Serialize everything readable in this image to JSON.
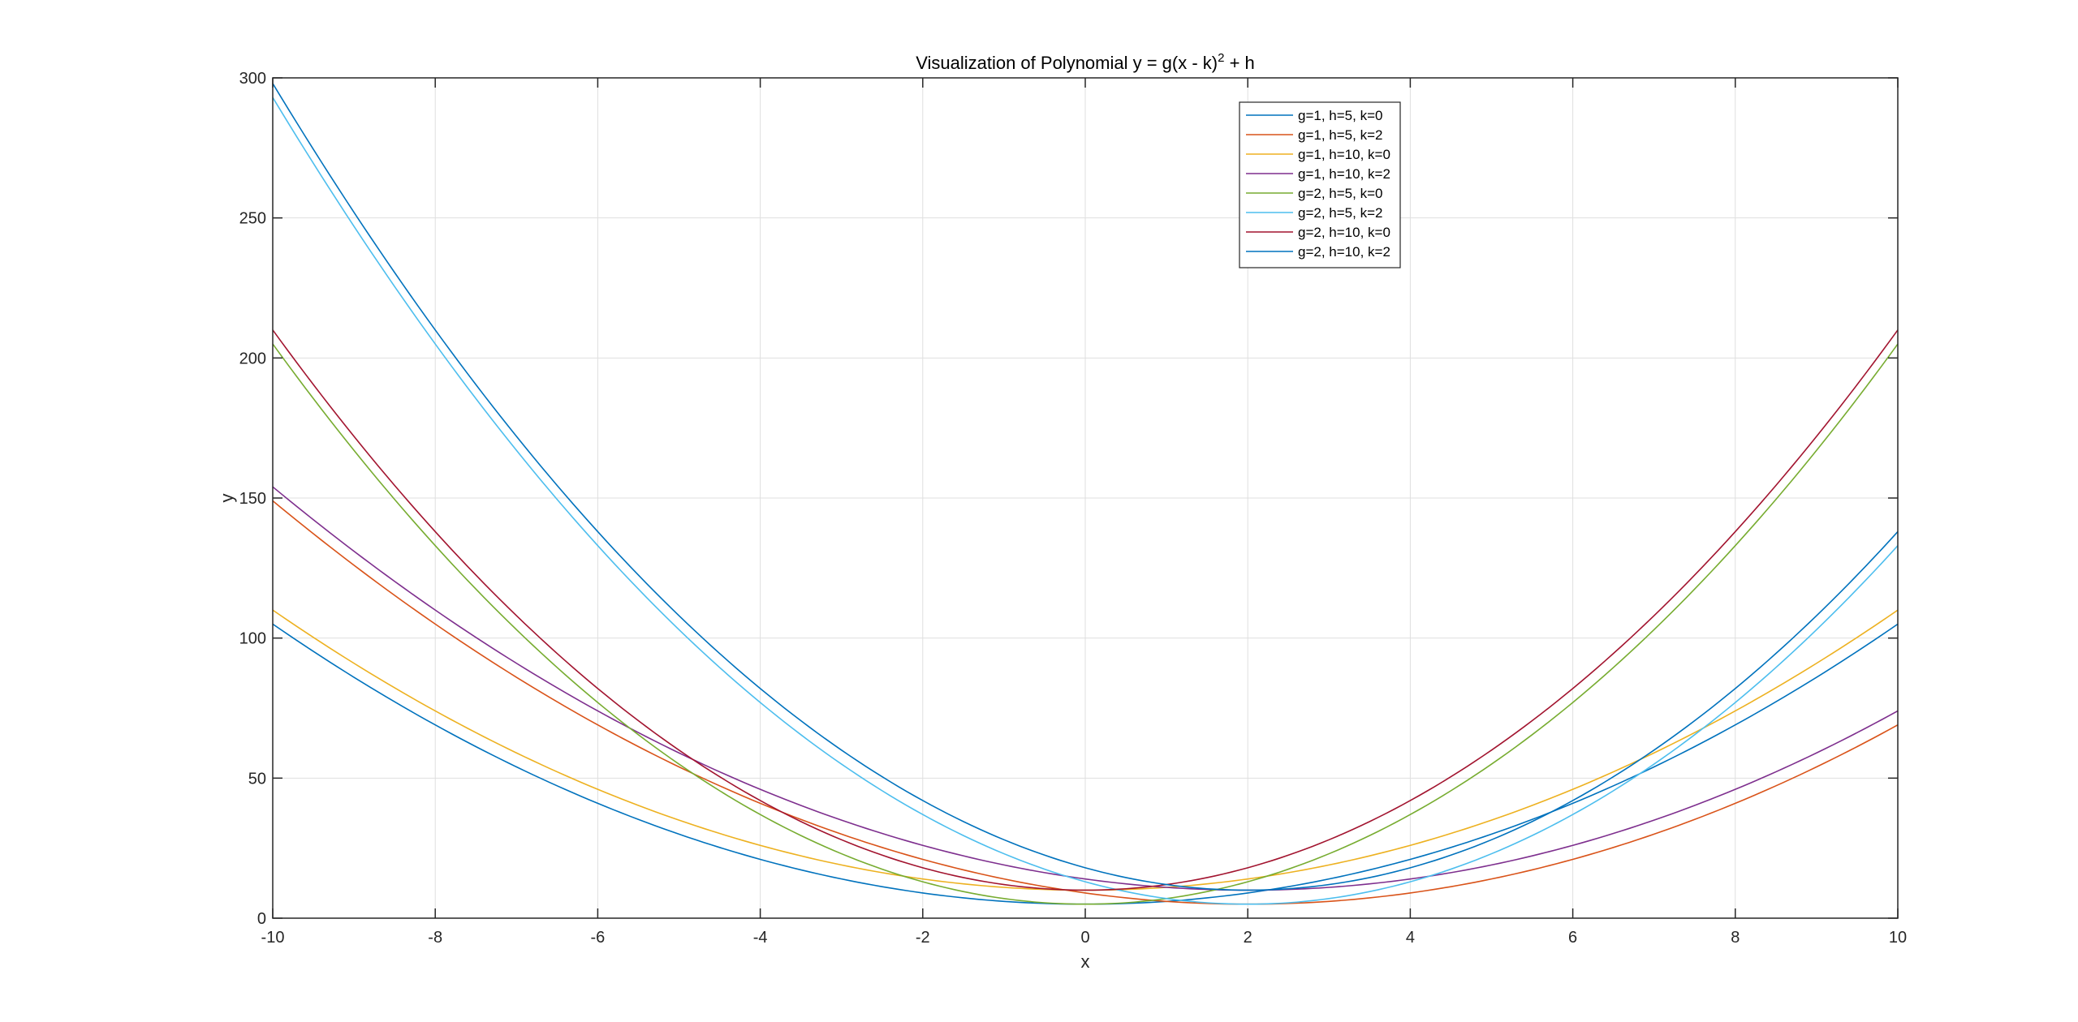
{
  "chart_data": {
    "type": "line",
    "title": "Visualization of Polynomial y = g(x - k)",
    "title_superscript": "2",
    "title_suffix": " + h",
    "xlabel": "x",
    "ylabel": "y",
    "xlim": [
      -10,
      10
    ],
    "ylim": [
      0,
      300
    ],
    "xticks": [
      -10,
      -8,
      -6,
      -4,
      -2,
      0,
      2,
      4,
      6,
      8,
      10
    ],
    "yticks": [
      0,
      50,
      100,
      150,
      200,
      250,
      300
    ],
    "grid": true,
    "legend_position": "top-center-right",
    "x_samples": 201,
    "series": [
      {
        "name": "g=1, h=5, k=0",
        "g": 1,
        "h": 5,
        "k": 0,
        "color": "#0072BD"
      },
      {
        "name": "g=1, h=5, k=2",
        "g": 1,
        "h": 5,
        "k": 2,
        "color": "#D95319"
      },
      {
        "name": "g=1, h=10, k=0",
        "g": 1,
        "h": 10,
        "k": 0,
        "color": "#EDB120"
      },
      {
        "name": "g=1, h=10, k=2",
        "g": 1,
        "h": 10,
        "k": 2,
        "color": "#7E2F8E"
      },
      {
        "name": "g=2, h=5, k=0",
        "g": 2,
        "h": 5,
        "k": 0,
        "color": "#77AC30"
      },
      {
        "name": "g=2, h=5, k=2",
        "g": 2,
        "h": 5,
        "k": 2,
        "color": "#4DBEEE"
      },
      {
        "name": "g=2, h=10, k=0",
        "g": 2,
        "h": 10,
        "k": 0,
        "color": "#A2142F"
      },
      {
        "name": "g=2, h=10, k=2",
        "g": 2,
        "h": 10,
        "k": 2,
        "color": "#0072BD"
      }
    ]
  }
}
